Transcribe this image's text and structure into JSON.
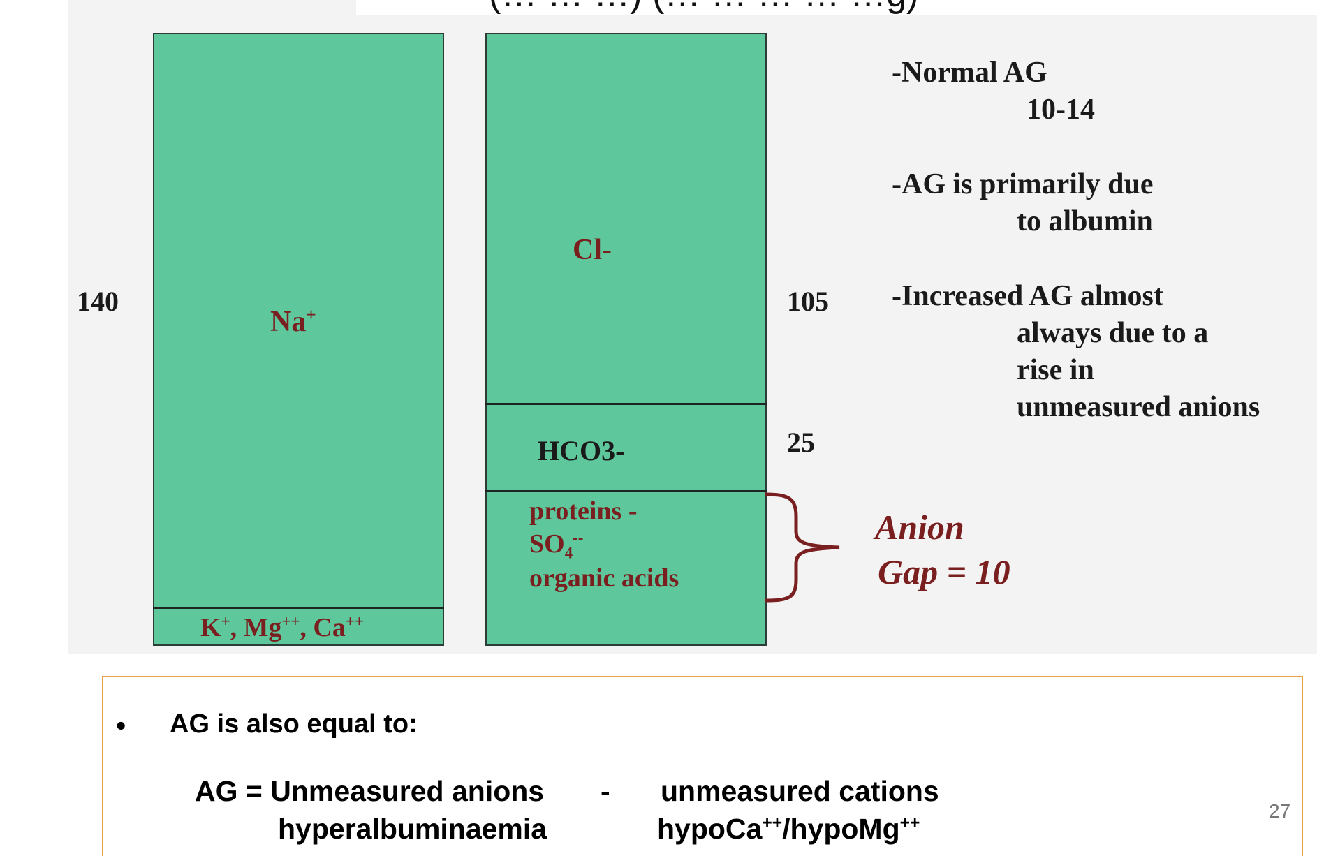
{
  "title": "(… … …) (… … … … …g)",
  "values": {
    "left": "140",
    "right_top": "105",
    "right_mid": "25"
  },
  "ions": {
    "na": "Na",
    "na_sup": "+",
    "cl": "Cl-",
    "hco3": "HCO3-",
    "proteins": "proteins -",
    "so4_base": "SO",
    "so4_sub": "4",
    "so4_sup": "--",
    "organic": "organic acids",
    "k": "K",
    "k_sup": "+",
    "mg": ", Mg",
    "mg_sup": "++",
    "ca": ", Ca",
    "ca_sup": "++"
  },
  "notes": {
    "normal_ag": "-Normal AG",
    "normal_range": "10-14",
    "primarily_line1": "-AG is primarily due",
    "primarily_line2": "to albumin",
    "increased_line1": "-Increased AG almost",
    "increased_line2": "always due to a",
    "increased_line3": "rise in",
    "increased_line4": "unmeasured anions"
  },
  "anion_gap": {
    "line1": "Anion",
    "line2": "Gap = 10"
  },
  "bottom": {
    "bullet": "•",
    "intro": "AG is also equal to:",
    "formula_left": "AG = Unmeasured anions",
    "formula_minus": "-",
    "formula_right": "unmeasured cations",
    "cause_left": "hyperalbuminaemia",
    "cause_right_a": "hypoCa",
    "cause_right_a_sup": "++",
    "cause_right_b": "/hypoMg",
    "cause_right_b_sup": "++"
  },
  "page_number": "27",
  "colors": {
    "block_fill": "#5ec79c",
    "maroon": "#7a1f1f",
    "box_border": "#e8a14a"
  }
}
